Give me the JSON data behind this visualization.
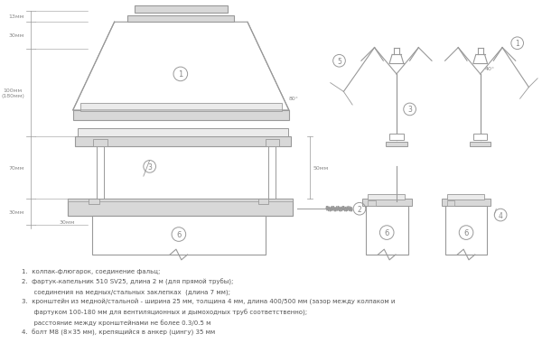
{
  "bg_color": "#ffffff",
  "lc": "#999999",
  "tc": "#888888",
  "fc_gray": "#d8d8d8",
  "fc_lgray": "#ebebeb",
  "fig_width": 6.0,
  "fig_height": 4.02,
  "legend": [
    "1.  колпак-флюгарок, соединение фальц;",
    "2.  фартук-капельник 510 SV25, длина 2 м (для прямой трубы);",
    "      соединения на медных/стальных заклепках  (длина 7 мм);",
    "3.  кронштейн из медной/стальной - ширина 25 мм, толщина 4 мм, длина 400/500 мм (зазор между колпаком и",
    "      фартуком 100-180 мм для вентиляционных и дымоходных труб соответственно);",
    "      расстояние между кронштейнами не более 0.3/0.5 м",
    "4.  болт M8 (8×35 мм), крепящийся в анкер (цингу) 35 мм"
  ]
}
